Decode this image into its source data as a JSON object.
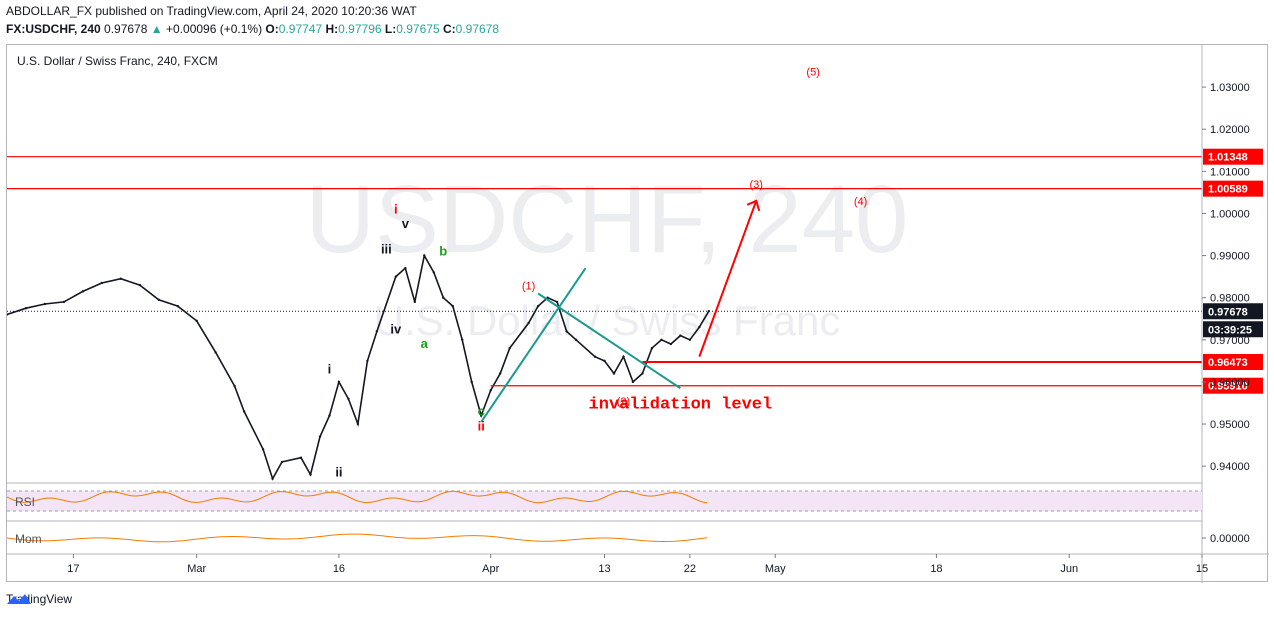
{
  "header": {
    "published": "ABDOLLAR_FX published on TradingView.com, April 24, 2020 10:20:36 WAT",
    "symbol": "FX:USDCHF, 240",
    "last": "0.97678",
    "change": "+0.00096 (+0.1%)",
    "o_label": "O:",
    "o_value": "0.97747",
    "h_label": "H:",
    "h_value": "0.97796",
    "l_label": "L:",
    "l_value": "0.97675",
    "c_label": "C:",
    "c_value": "0.97678"
  },
  "chart_title": "U.S. Dollar / Swiss Franc, 240, FXCM",
  "watermark": {
    "big": "USDCHF, 240",
    "small": "U.S. Dollar / Swiss Franc"
  },
  "footer": {
    "brand": "TradingView"
  },
  "indicators": {
    "rsi_label": "RSI",
    "mom_label": "Mom",
    "mom_value": "0.00000"
  },
  "colors": {
    "accent_red": "#ff0000",
    "green": "#1a9e1a",
    "teal": "#1b9a8f",
    "orange": "#f57c00",
    "price_tag": "#131722"
  },
  "chart_data": {
    "type": "line",
    "title": "U.S. Dollar / Swiss Franc, 240, FXCM",
    "ylim": [
      0.936,
      1.04
    ],
    "y_ticks": [
      "1.03000",
      "1.02000",
      "1.01000",
      "1.00000",
      "0.99000",
      "0.98000",
      "0.97000",
      "0.96000",
      "0.95000",
      "0.94000"
    ],
    "x_ticks": [
      "17",
      "Mar",
      "16",
      "Apr",
      "13",
      "22",
      "May",
      "18",
      "Jun",
      "15"
    ],
    "x_range": [
      "2020-02-10",
      "2020-06-15"
    ],
    "x_tick_dates": [
      "2020-02-17",
      "2020-03-01",
      "2020-03-16",
      "2020-04-01",
      "2020-04-13",
      "2020-04-22",
      "2020-05-01",
      "2020-05-18",
      "2020-06-01",
      "2020-06-15"
    ],
    "price_series": [
      [
        "2020-02-10",
        0.976
      ],
      [
        "2020-02-12",
        0.9775
      ],
      [
        "2020-02-14",
        0.9785
      ],
      [
        "2020-02-16",
        0.979
      ],
      [
        "2020-02-18",
        0.9815
      ],
      [
        "2020-02-20",
        0.9835
      ],
      [
        "2020-02-22",
        0.9845
      ],
      [
        "2020-02-24",
        0.983
      ],
      [
        "2020-02-26",
        0.9795
      ],
      [
        "2020-02-28",
        0.978
      ],
      [
        "2020-03-01",
        0.9745
      ],
      [
        "2020-03-03",
        0.967
      ],
      [
        "2020-03-05",
        0.959
      ],
      [
        "2020-03-06",
        0.953
      ],
      [
        "2020-03-08",
        0.944
      ],
      [
        "2020-03-09",
        0.937
      ],
      [
        "2020-03-10",
        0.941
      ],
      [
        "2020-03-12",
        0.942
      ],
      [
        "2020-03-13",
        0.938
      ],
      [
        "2020-03-14",
        0.947
      ],
      [
        "2020-03-15",
        0.952
      ],
      [
        "2020-03-16",
        0.96
      ],
      [
        "2020-03-17",
        0.956
      ],
      [
        "2020-03-18",
        0.95
      ],
      [
        "2020-03-19",
        0.965
      ],
      [
        "2020-03-20",
        0.972
      ],
      [
        "2020-03-22",
        0.985
      ],
      [
        "2020-03-23",
        0.987
      ],
      [
        "2020-03-24",
        0.979
      ],
      [
        "2020-03-25",
        0.99
      ],
      [
        "2020-03-26",
        0.986
      ],
      [
        "2020-03-27",
        0.98
      ],
      [
        "2020-03-28",
        0.978
      ],
      [
        "2020-03-29",
        0.97
      ],
      [
        "2020-03-30",
        0.96
      ],
      [
        "2020-03-31",
        0.952
      ],
      [
        "2020-04-01",
        0.958
      ],
      [
        "2020-04-02",
        0.962
      ],
      [
        "2020-04-03",
        0.968
      ],
      [
        "2020-04-05",
        0.974
      ],
      [
        "2020-04-06",
        0.978
      ],
      [
        "2020-04-07",
        0.98
      ],
      [
        "2020-04-08",
        0.979
      ],
      [
        "2020-04-09",
        0.972
      ],
      [
        "2020-04-10",
        0.97
      ],
      [
        "2020-04-12",
        0.966
      ],
      [
        "2020-04-13",
        0.965
      ],
      [
        "2020-04-14",
        0.962
      ],
      [
        "2020-04-15",
        0.966
      ],
      [
        "2020-04-16",
        0.96
      ],
      [
        "2020-04-17",
        0.962
      ],
      [
        "2020-04-18",
        0.968
      ],
      [
        "2020-04-19",
        0.97
      ],
      [
        "2020-04-20",
        0.969
      ],
      [
        "2020-04-21",
        0.971
      ],
      [
        "2020-04-22",
        0.97
      ],
      [
        "2020-04-23",
        0.973
      ],
      [
        "2020-04-24",
        0.9768
      ]
    ],
    "horizontal_levels": [
      "1.01348",
      "1.00589",
      "0.96473",
      "0.95910"
    ],
    "current_price": "0.97678",
    "countdown": "03:39:25",
    "annotations": [
      {
        "text": "(5)",
        "date": "2020-05-05",
        "price": 1.0328
      },
      {
        "text": "(3)",
        "date": "2020-04-29",
        "price": 1.006
      },
      {
        "text": "(4)",
        "date": "2020-05-10",
        "price": 1.002
      },
      {
        "text": "(1)",
        "date": "2020-04-05",
        "price": 0.982
      },
      {
        "text": "(2)",
        "date": "2020-04-15",
        "price": 0.9545
      },
      {
        "text": "invalidation level",
        "date": "2020-04-21",
        "price": 0.9537
      },
      {
        "text": "i",
        "date": "2020-03-22",
        "price": 1.0
      },
      {
        "text": "v",
        "date": "2020-03-23",
        "price": 0.9965
      },
      {
        "text": "iii",
        "date": "2020-03-21",
        "price": 0.9905
      },
      {
        "text": "b",
        "date": "2020-03-27",
        "price": 0.99
      },
      {
        "text": "iv",
        "date": "2020-03-22",
        "price": 0.9715
      },
      {
        "text": "a",
        "date": "2020-03-25",
        "price": 0.968
      },
      {
        "text": "i",
        "date": "2020-03-15",
        "price": 0.962
      },
      {
        "text": "c",
        "date": "2020-03-31",
        "price": 0.952
      },
      {
        "text": "ii",
        "date": "2020-03-31",
        "price": 0.9485
      },
      {
        "text": "ii",
        "date": "2020-03-16",
        "price": 0.9375
      }
    ]
  }
}
